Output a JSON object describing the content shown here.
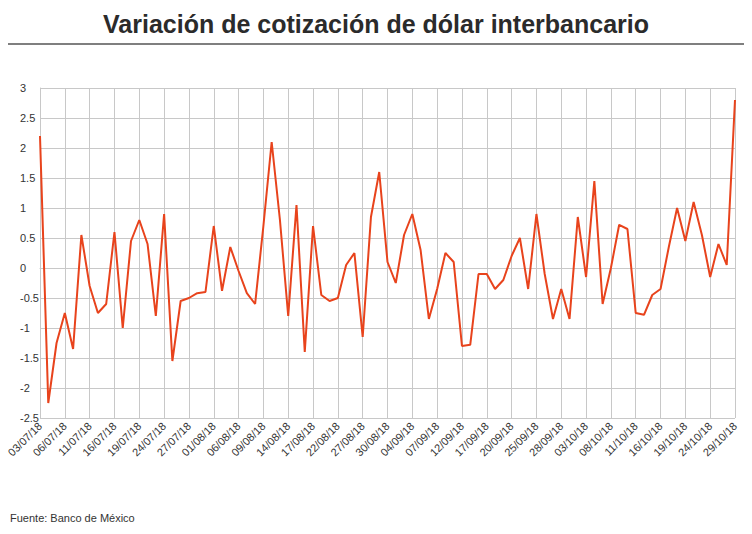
{
  "chart_data": {
    "type": "line",
    "title": "Variación de cotización de dólar interbancario",
    "source": "Fuente: Banco de México",
    "categories": [
      "03/07/18",
      null,
      null,
      "06/07/18",
      null,
      null,
      "11/07/18",
      null,
      null,
      "16/07/18",
      null,
      null,
      "19/07/18",
      null,
      null,
      "24/07/18",
      null,
      null,
      "27/07/18",
      null,
      null,
      "01/08/18",
      null,
      null,
      "06/08/18",
      null,
      null,
      "09/08/18",
      null,
      null,
      "14/08/18",
      null,
      null,
      "17/08/18",
      null,
      null,
      "22/08/18",
      null,
      null,
      "27/08/18",
      null,
      null,
      "30/08/18",
      null,
      null,
      "04/09/18",
      null,
      null,
      "07/09/18",
      null,
      null,
      "12/09/18",
      null,
      null,
      "17/09/18",
      null,
      null,
      "20/09/18",
      null,
      null,
      "25/09/18",
      null,
      null,
      "28/09/18",
      null,
      null,
      "03/10/18",
      null,
      null,
      "08/10/18",
      null,
      null,
      "11/10/18",
      null,
      null,
      "16/10/18",
      null,
      null,
      "19/10/18",
      null,
      null,
      "24/10/18",
      null,
      null,
      "29/10/18"
    ],
    "values": [
      2.2,
      -2.25,
      -1.25,
      -0.75,
      -1.35,
      0.55,
      -0.3,
      -0.75,
      -0.6,
      0.6,
      -1.0,
      0.45,
      0.8,
      0.4,
      -0.8,
      0.9,
      -1.55,
      -0.55,
      -0.5,
      -0.42,
      -0.4,
      0.7,
      -0.38,
      0.35,
      -0.05,
      -0.42,
      -0.6,
      0.7,
      2.1,
      0.8,
      -0.8,
      1.05,
      -1.4,
      0.7,
      -0.45,
      -0.55,
      -0.5,
      0.05,
      0.25,
      -1.15,
      0.85,
      1.6,
      0.1,
      -0.25,
      0.55,
      0.9,
      0.3,
      -0.85,
      -0.35,
      0.25,
      0.1,
      -1.3,
      -1.28,
      -0.1,
      -0.1,
      -0.35,
      -0.2,
      0.2,
      0.5,
      -0.35,
      0.9,
      -0.1,
      -0.85,
      -0.35,
      -0.85,
      0.85,
      -0.15,
      1.45,
      -0.6,
      0.0,
      0.72,
      0.65,
      -0.75,
      -0.78,
      -0.45,
      -0.35,
      0.35,
      1.0,
      0.45,
      1.1,
      0.55,
      -0.15,
      0.4,
      0.05,
      2.8
    ],
    "color": "#e8431c",
    "ylim": [
      -2.5,
      3
    ],
    "yticks": [
      -2.5,
      -2,
      -1.5,
      -1,
      -0.5,
      0,
      0.5,
      1,
      1.5,
      2,
      2.5,
      3
    ],
    "grid": true
  }
}
